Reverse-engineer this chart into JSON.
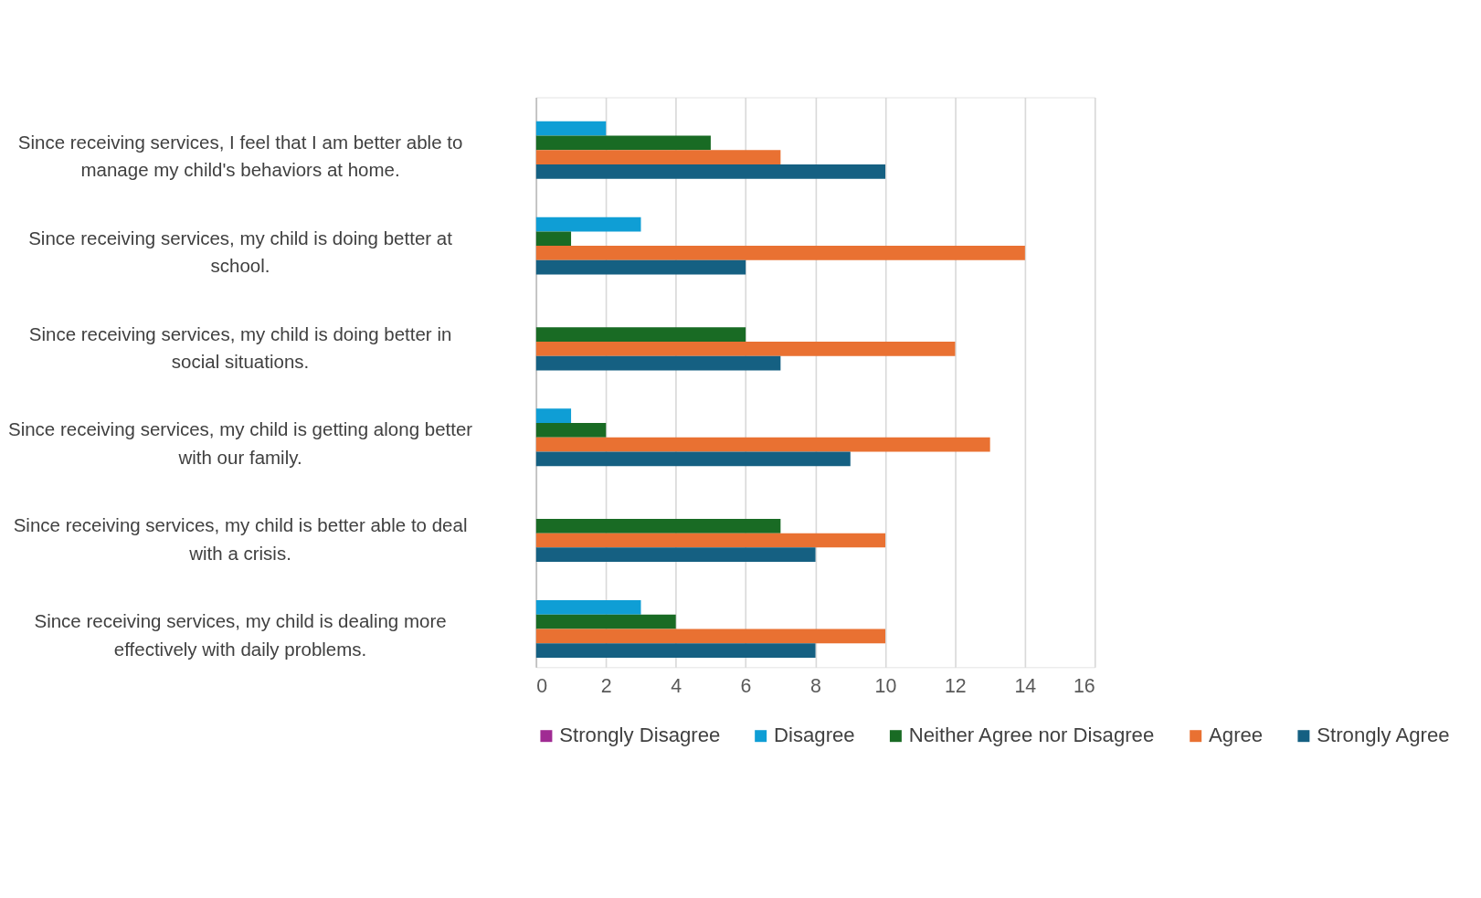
{
  "chart_data": {
    "type": "bar",
    "orientation": "horizontal",
    "categories": [
      "Since receiving services, I feel that I am better able to manage my child's behaviors at home.",
      "Since receiving services, my child is doing better at school.",
      "Since receiving services, my child is doing better in social situations.",
      "Since receiving services, my child is getting along better with our family.",
      "Since receiving services, my child is better able to deal with a crisis.",
      "Since receiving services, my child is dealing more effectively with daily problems."
    ],
    "series": [
      {
        "name": "Strongly Disagree",
        "color": "#a02b93",
        "values": [
          null,
          null,
          null,
          null,
          null,
          null
        ]
      },
      {
        "name": "Disagree",
        "color": "#0f9ed5",
        "values": [
          2,
          3,
          null,
          1,
          null,
          3
        ]
      },
      {
        "name": "Neither Agree nor Disagree",
        "color": "#196b24",
        "values": [
          5,
          1,
          6,
          2,
          7,
          4
        ]
      },
      {
        "name": "Agree",
        "color": "#e97132",
        "values": [
          7,
          14,
          12,
          13,
          10,
          10
        ]
      },
      {
        "name": "Strongly Agree",
        "color": "#156082",
        "values": [
          10,
          6,
          7,
          9,
          8,
          8
        ]
      }
    ],
    "xlim": [
      0,
      16
    ],
    "xticks": [
      0,
      2,
      4,
      6,
      8,
      10,
      12,
      14,
      16
    ],
    "grid": "x",
    "legend": "bottom"
  }
}
